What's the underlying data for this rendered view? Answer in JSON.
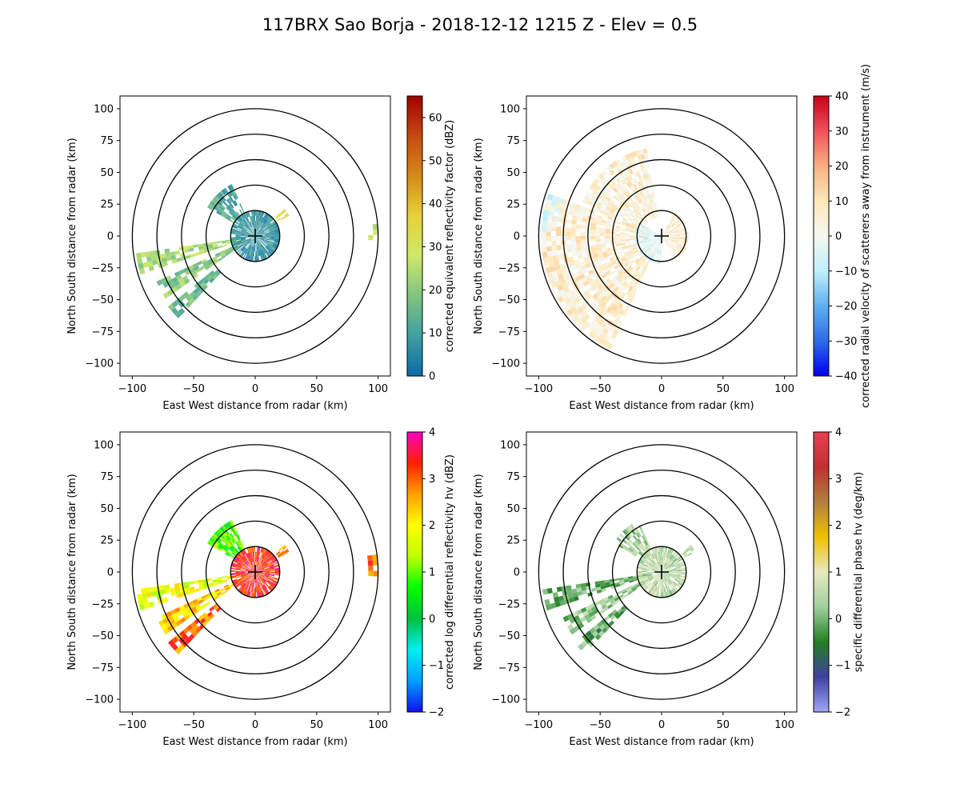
{
  "figure": {
    "title": "117BRX Sao Borja - 2018-12-12 1215 Z -  Elev = 0.5"
  },
  "chart_data": [
    {
      "type": "heatmap",
      "field": "reflectivity",
      "xlabel": "East West distance from radar (km)",
      "ylabel": "North South distance from radar (km)",
      "xlim": [
        -110,
        110
      ],
      "ylim": [
        -110,
        110
      ],
      "xticks": [
        -100,
        -50,
        0,
        50,
        100
      ],
      "yticks": [
        -100,
        -75,
        -50,
        -25,
        0,
        25,
        50,
        75,
        100
      ],
      "range_rings_km": [
        20,
        40,
        60,
        80,
        100
      ],
      "radar_marker": [
        0,
        0
      ],
      "colorbar": {
        "label": "corrected equivalent reflectivity factor (dBZ)",
        "min": 0,
        "max": 65,
        "ticks": [
          0,
          10,
          20,
          30,
          40,
          50,
          60
        ],
        "colors": [
          "#0a6aa8",
          "#3f9fa0",
          "#7fc47f",
          "#cfe86a",
          "#e6d23a",
          "#d58a1a",
          "#c44a12",
          "#a00000"
        ]
      },
      "echo_regions": [
        {
          "name": "west sector band",
          "az_deg": [
            252,
            262
          ],
          "range_km": [
            8,
            98
          ],
          "value": 22
        },
        {
          "name": "southwest band",
          "az_deg": [
            236,
            246
          ],
          "range_km": [
            8,
            88
          ],
          "value": 18
        },
        {
          "name": "southwest tail",
          "az_deg": [
            224,
            232
          ],
          "range_km": [
            40,
            90
          ],
          "value": 14
        },
        {
          "name": "northwest cluster",
          "az_deg": [
            300,
            335
          ],
          "range_km": [
            20,
            45
          ],
          "value": 10
        },
        {
          "name": "near radar core",
          "az_deg": [
            0,
            360
          ],
          "range_km": [
            0,
            20
          ],
          "value": 6
        },
        {
          "name": "northeast cell",
          "az_deg": [
            48,
            60
          ],
          "range_km": [
            22,
            32
          ],
          "value": 32
        },
        {
          "name": "far east fringe",
          "az_deg": [
            82,
            92
          ],
          "range_km": [
            92,
            100
          ],
          "value": 24
        }
      ]
    },
    {
      "type": "heatmap",
      "field": "velocity",
      "xlabel": "East West distance from radar (km)",
      "ylabel": "North South distance from radar (km)",
      "xlim": [
        -110,
        110
      ],
      "ylim": [
        -110,
        110
      ],
      "xticks": [
        -100,
        -50,
        0,
        50,
        100
      ],
      "yticks": [
        -100,
        -75,
        -50,
        -25,
        0,
        25,
        50,
        75,
        100
      ],
      "range_rings_km": [
        20,
        40,
        60,
        80,
        100
      ],
      "radar_marker": [
        0,
        0
      ],
      "colorbar": {
        "label": "corrected radial velocity of scatterers away from instrument (m/s)",
        "min": -40,
        "max": 40,
        "ticks": [
          -40,
          -30,
          -20,
          -10,
          0,
          10,
          20,
          30,
          40
        ],
        "colors": [
          "#0000ee",
          "#2e6be8",
          "#5fb0f0",
          "#bff0fb",
          "#f7f7f2",
          "#fde8b8",
          "#f8b080",
          "#f0505a",
          "#c80018"
        ]
      },
      "echo_regions": [
        {
          "name": "west-southwest sector",
          "az_deg": [
            205,
            290
          ],
          "range_km": [
            10,
            98
          ],
          "value": 4
        },
        {
          "name": "northwest sector",
          "az_deg": [
            290,
            350
          ],
          "range_km": [
            15,
            70
          ],
          "value": 3
        },
        {
          "name": "near radar inbound",
          "az_deg": [
            180,
            300
          ],
          "range_km": [
            0,
            22
          ],
          "value": -6
        },
        {
          "name": "near radar east",
          "az_deg": [
            30,
            150
          ],
          "range_km": [
            0,
            22
          ],
          "value": 4
        },
        {
          "name": "far west fringe",
          "az_deg": [
            272,
            290
          ],
          "range_km": [
            85,
            98
          ],
          "value": -5
        }
      ]
    },
    {
      "type": "heatmap",
      "field": "differential_reflectivity",
      "xlabel": "East West distance from radar (km)",
      "ylabel": "North South distance from radar (km)",
      "xlim": [
        -110,
        110
      ],
      "ylim": [
        -110,
        110
      ],
      "xticks": [
        -100,
        -50,
        0,
        50,
        100
      ],
      "yticks": [
        -100,
        -75,
        -50,
        -25,
        0,
        25,
        50,
        75,
        100
      ],
      "range_rings_km": [
        20,
        40,
        60,
        80,
        100
      ],
      "radar_marker": [
        0,
        0
      ],
      "colorbar": {
        "label": "corrected log differential reflectivity hv (dBZ)",
        "min": -2,
        "max": 4,
        "ticks": [
          -2,
          -1,
          0,
          1,
          2,
          3,
          4
        ],
        "colors": [
          "#1010f0",
          "#00a0ff",
          "#00f0f0",
          "#00c040",
          "#00ff00",
          "#c0ff00",
          "#ffff00",
          "#ffa000",
          "#ff2000",
          "#ff00c0"
        ]
      },
      "echo_regions": [
        {
          "name": "west sector band",
          "az_deg": [
            252,
            262
          ],
          "range_km": [
            8,
            98
          ],
          "value": 1.6
        },
        {
          "name": "southwest band",
          "az_deg": [
            236,
            246
          ],
          "range_km": [
            8,
            88
          ],
          "value": 2.2
        },
        {
          "name": "southwest tail",
          "az_deg": [
            224,
            232
          ],
          "range_km": [
            40,
            90
          ],
          "value": 2.8
        },
        {
          "name": "northwest cluster",
          "az_deg": [
            300,
            335
          ],
          "range_km": [
            20,
            45
          ],
          "value": 0.8
        },
        {
          "name": "near radar core",
          "az_deg": [
            0,
            360
          ],
          "range_km": [
            0,
            20
          ],
          "value": 3.2
        },
        {
          "name": "northeast cell",
          "az_deg": [
            48,
            60
          ],
          "range_km": [
            22,
            32
          ],
          "value": 2.6
        },
        {
          "name": "far east fringe",
          "az_deg": [
            82,
            92
          ],
          "range_km": [
            92,
            100
          ],
          "value": 3.0
        }
      ]
    },
    {
      "type": "heatmap",
      "field": "specific_differential_phase",
      "xlabel": "East West distance from radar (km)",
      "ylabel": "North South distance from radar (km)",
      "xlim": [
        -110,
        110
      ],
      "ylim": [
        -110,
        110
      ],
      "xticks": [
        -100,
        -50,
        0,
        50,
        100
      ],
      "yticks": [
        -100,
        -75,
        -50,
        -25,
        0,
        25,
        50,
        75,
        100
      ],
      "range_rings_km": [
        20,
        40,
        60,
        80,
        100
      ],
      "radar_marker": [
        0,
        0
      ],
      "colorbar": {
        "label": "specific differential phase hv (deg/km)",
        "min": -2,
        "max": 4,
        "ticks": [
          -2,
          -1,
          0,
          1,
          2,
          3,
          4
        ],
        "colors": [
          "#a0a8f8",
          "#4040a0",
          "#208020",
          "#a0d0a0",
          "#e8e8c0",
          "#f0c000",
          "#b08040",
          "#c03030",
          "#e84050"
        ]
      },
      "echo_regions": [
        {
          "name": "west sector band",
          "az_deg": [
            252,
            262
          ],
          "range_km": [
            8,
            98
          ],
          "value": -0.2
        },
        {
          "name": "southwest band",
          "az_deg": [
            236,
            246
          ],
          "range_km": [
            8,
            88
          ],
          "value": 0.1
        },
        {
          "name": "southwest tail",
          "az_deg": [
            224,
            232
          ],
          "range_km": [
            40,
            90
          ],
          "value": -0.3
        },
        {
          "name": "northwest cluster",
          "az_deg": [
            300,
            335
          ],
          "range_km": [
            20,
            45
          ],
          "value": 0.2
        },
        {
          "name": "near radar core",
          "az_deg": [
            0,
            360
          ],
          "range_km": [
            0,
            20
          ],
          "value": 0.4
        },
        {
          "name": "northeast cell",
          "az_deg": [
            48,
            60
          ],
          "range_km": [
            22,
            32
          ],
          "value": 0.6
        }
      ]
    }
  ]
}
